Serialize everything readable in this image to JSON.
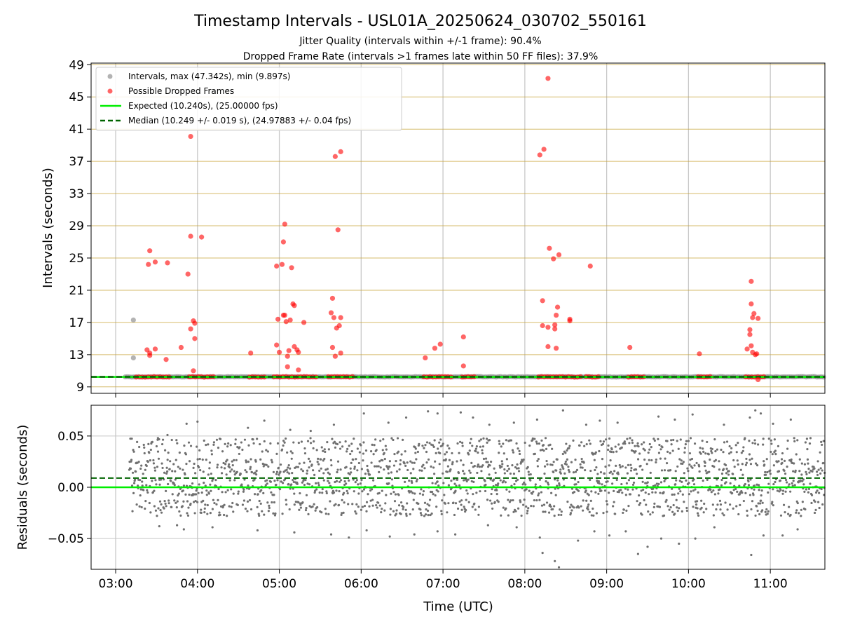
{
  "chart_data": [
    {
      "type": "scatter",
      "title": "Timestamp Intervals - USL01A_20250624_030702_550161",
      "subtitle_lines": [
        "Jitter Quality (intervals within +/-1 frame): 90.4%",
        "Dropped Frame Rate (intervals >1 frames late within 50 FF files): 37.9%"
      ],
      "xlabel": "",
      "ylabel": "Intervals (seconds)",
      "xlim": [
        "02:42",
        "11:40"
      ],
      "ylim": [
        8.2,
        49.2
      ],
      "yticks": [
        9,
        13,
        17,
        21,
        25,
        29,
        33,
        37,
        41,
        45,
        49
      ],
      "ytick_labels": [
        "9",
        "13",
        "17",
        "21",
        "25",
        "29",
        "33",
        "37",
        "41",
        "45",
        "49"
      ],
      "grid": "vertical at hours, horizontal goldenrod at y ticks",
      "legend_position": "top-left",
      "legend": [
        {
          "label": "Intervals, max (47.342s), min (9.897s)",
          "kind": "marker",
          "color": "#808080"
        },
        {
          "label": "Possible Dropped Frames",
          "kind": "marker",
          "color": "#ff0000"
        },
        {
          "label": "Expected (10.240s), (25.00000 fps)",
          "kind": "line",
          "color": "#00ee00"
        },
        {
          "label": "Median (10.249 +/- 0.019 s), (24.97883 +/- 0.04 fps)",
          "kind": "dashed",
          "color": "#006400"
        }
      ],
      "expected": 10.24,
      "median": 10.249,
      "baseline_bands": [
        {
          "series": "Intervals",
          "from": "03:07",
          "to": "11:40",
          "y": 10.25
        },
        {
          "series": "Possible Dropped Frames",
          "from": "03:15",
          "to": "03:40",
          "y": 10.24
        },
        {
          "series": "Possible Dropped Frames",
          "from": "03:54",
          "to": "04:12",
          "y": 10.24
        },
        {
          "series": "Possible Dropped Frames",
          "from": "04:38",
          "to": "04:49",
          "y": 10.24
        },
        {
          "series": "Possible Dropped Frames",
          "from": "04:56",
          "to": "05:28",
          "y": 10.24
        },
        {
          "series": "Possible Dropped Frames",
          "from": "05:36",
          "to": "05:55",
          "y": 10.24
        },
        {
          "series": "Possible Dropped Frames",
          "from": "06:46",
          "to": "07:07",
          "y": 10.24
        },
        {
          "series": "Possible Dropped Frames",
          "from": "07:14",
          "to": "07:24",
          "y": 10.24
        },
        {
          "series": "Possible Dropped Frames",
          "from": "08:10",
          "to": "08:42",
          "y": 10.24
        },
        {
          "series": "Possible Dropped Frames",
          "from": "08:45",
          "to": "08:55",
          "y": 10.24
        },
        {
          "series": "Possible Dropped Frames",
          "from": "09:16",
          "to": "09:28",
          "y": 10.24
        },
        {
          "series": "Possible Dropped Frames",
          "from": "10:07",
          "to": "10:18",
          "y": 10.24
        },
        {
          "series": "Possible Dropped Frames",
          "from": "10:42",
          "to": "10:56",
          "y": 10.24
        }
      ],
      "series": [
        {
          "name": "Intervals, max (47.342s), min (9.897s)",
          "color": "#808080",
          "points": [
            [
              "03:13",
              17.3
            ],
            [
              "03:13",
              12.6
            ]
          ]
        },
        {
          "name": "Possible Dropped Frames",
          "color": "#ff0000",
          "points": [
            [
              "03:24",
              24.2
            ],
            [
              "03:25",
              25.9
            ],
            [
              "03:29",
              24.5
            ],
            [
              "03:23",
              13.6
            ],
            [
              "03:25",
              12.9
            ],
            [
              "03:25",
              13.2
            ],
            [
              "03:29",
              13.7
            ],
            [
              "03:38",
              24.4
            ],
            [
              "03:37",
              12.4
            ],
            [
              "03:53",
              23.0
            ],
            [
              "03:55",
              27.7
            ],
            [
              "03:55",
              40.1
            ],
            [
              "03:55",
              16.2
            ],
            [
              "03:57",
              17.2
            ],
            [
              "03:58",
              16.9
            ],
            [
              "03:58",
              15.0
            ],
            [
              "04:03",
              27.6
            ],
            [
              "03:57",
              11.0
            ],
            [
              "03:48",
              13.9
            ],
            [
              "04:39",
              13.2
            ],
            [
              "04:58",
              24.0
            ],
            [
              "05:02",
              24.2
            ],
            [
              "05:03",
              27.0
            ],
            [
              "05:04",
              29.2
            ],
            [
              "05:09",
              23.8
            ],
            [
              "04:59",
              17.4
            ],
            [
              "05:04",
              17.9
            ],
            [
              "05:05",
              17.1
            ],
            [
              "05:08",
              17.3
            ],
            [
              "05:10",
              19.3
            ],
            [
              "05:11",
              19.1
            ],
            [
              "04:58",
              14.2
            ],
            [
              "05:00",
              13.3
            ],
            [
              "05:06",
              12.8
            ],
            [
              "05:07",
              13.5
            ],
            [
              "05:06",
              11.5
            ],
            [
              "05:11",
              14.0
            ],
            [
              "05:13",
              13.6
            ],
            [
              "05:14",
              13.3
            ],
            [
              "05:14",
              11.1
            ],
            [
              "05:18",
              17.0
            ],
            [
              "05:03",
              17.9
            ],
            [
              "05:41",
              37.6
            ],
            [
              "05:45",
              38.2
            ],
            [
              "05:43",
              28.5
            ],
            [
              "05:38",
              18.2
            ],
            [
              "05:39",
              20.0
            ],
            [
              "05:40",
              17.6
            ],
            [
              "05:42",
              16.3
            ],
            [
              "05:44",
              16.6
            ],
            [
              "05:45",
              17.6
            ],
            [
              "05:39",
              13.9
            ],
            [
              "05:41",
              12.8
            ],
            [
              "05:45",
              13.2
            ],
            [
              "06:47",
              12.6
            ],
            [
              "06:54",
              13.8
            ],
            [
              "06:58",
              14.3
            ],
            [
              "07:15",
              15.2
            ],
            [
              "07:15",
              11.6
            ],
            [
              "08:11",
              37.8
            ],
            [
              "08:14",
              38.5
            ],
            [
              "08:17",
              47.3
            ],
            [
              "08:18",
              26.2
            ],
            [
              "08:21",
              24.9
            ],
            [
              "08:25",
              25.4
            ],
            [
              "08:13",
              19.7
            ],
            [
              "08:13",
              16.6
            ],
            [
              "08:17",
              16.4
            ],
            [
              "08:22",
              16.2
            ],
            [
              "08:22",
              16.7
            ],
            [
              "08:23",
              17.9
            ],
            [
              "08:24",
              18.9
            ],
            [
              "08:33",
              17.2
            ],
            [
              "08:33",
              17.4
            ],
            [
              "08:17",
              14.0
            ],
            [
              "08:23",
              13.8
            ],
            [
              "08:48",
              24.0
            ],
            [
              "09:17",
              13.9
            ],
            [
              "10:08",
              13.1
            ],
            [
              "10:43",
              13.7
            ],
            [
              "10:45",
              15.5
            ],
            [
              "10:45",
              16.1
            ],
            [
              "10:46",
              19.3
            ],
            [
              "10:46",
              22.1
            ],
            [
              "10:47",
              17.6
            ],
            [
              "10:48",
              18.1
            ],
            [
              "10:51",
              17.5
            ],
            [
              "10:46",
              14.1
            ],
            [
              "10:47",
              13.3
            ],
            [
              "10:49",
              13.0
            ],
            [
              "10:50",
              13.1
            ],
            [
              "10:51",
              9.9
            ]
          ]
        }
      ]
    },
    {
      "type": "scatter",
      "title": "",
      "xlabel": "Time (UTC)",
      "ylabel": "Residuals (seconds)",
      "xlim": [
        "02:42",
        "11:40"
      ],
      "ylim": [
        -0.08,
        0.08
      ],
      "yticks": [
        -0.05,
        0.0,
        0.05
      ],
      "ytick_labels": [
        "−0.05",
        "0.00",
        "0.05"
      ],
      "xticks": [
        "03:00",
        "04:00",
        "05:00",
        "06:00",
        "07:00",
        "08:00",
        "09:00",
        "10:00",
        "11:00"
      ],
      "grid": "on",
      "expected_line": 0.0,
      "median_line": 0.009,
      "residual_levels": [
        -0.02,
        0.0,
        0.02,
        0.04
      ],
      "residual_span": [
        "03:10",
        "11:40"
      ],
      "series": [
        {
          "name": "Residuals",
          "color": "#808080",
          "points": [
            [
              "03:31",
              0.048
            ],
            [
              "03:38",
              0.051
            ],
            [
              "03:52",
              0.062
            ],
            [
              "04:00",
              0.064
            ],
            [
              "04:37",
              0.058
            ],
            [
              "04:49",
              0.065
            ],
            [
              "05:08",
              0.056
            ],
            [
              "05:23",
              0.055
            ],
            [
              "05:40",
              0.061
            ],
            [
              "06:02",
              0.072
            ],
            [
              "06:20",
              0.063
            ],
            [
              "06:33",
              0.068
            ],
            [
              "06:49",
              0.074
            ],
            [
              "06:56",
              0.072
            ],
            [
              "07:13",
              0.073
            ],
            [
              "07:22",
              0.068
            ],
            [
              "07:34",
              0.061
            ],
            [
              "07:52",
              0.063
            ],
            [
              "08:09",
              0.066
            ],
            [
              "08:28",
              0.075
            ],
            [
              "08:45",
              0.061
            ],
            [
              "08:55",
              0.065
            ],
            [
              "09:08",
              0.063
            ],
            [
              "09:38",
              0.069
            ],
            [
              "09:50",
              0.066
            ],
            [
              "10:03",
              0.071
            ],
            [
              "10:26",
              0.061
            ],
            [
              "10:45",
              0.068
            ],
            [
              "10:49",
              0.075
            ],
            [
              "10:53",
              0.072
            ],
            [
              "11:02",
              0.062
            ],
            [
              "11:15",
              0.066
            ],
            [
              "03:32",
              -0.038
            ],
            [
              "03:45",
              -0.037
            ],
            [
              "03:50",
              -0.041
            ],
            [
              "04:11",
              -0.039
            ],
            [
              "04:44",
              -0.042
            ],
            [
              "05:11",
              -0.044
            ],
            [
              "05:38",
              -0.046
            ],
            [
              "05:51",
              -0.049
            ],
            [
              "06:04",
              -0.042
            ],
            [
              "06:21",
              -0.048
            ],
            [
              "06:39",
              -0.046
            ],
            [
              "06:56",
              -0.043
            ],
            [
              "07:09",
              -0.046
            ],
            [
              "07:33",
              -0.037
            ],
            [
              "07:54",
              -0.039
            ],
            [
              "08:11",
              -0.049
            ],
            [
              "08:13",
              -0.064
            ],
            [
              "08:22",
              -0.072
            ],
            [
              "08:25",
              -0.078
            ],
            [
              "08:39",
              -0.052
            ],
            [
              "08:51",
              -0.043
            ],
            [
              "09:02",
              -0.047
            ],
            [
              "09:14",
              -0.043
            ],
            [
              "09:23",
              -0.065
            ],
            [
              "09:30",
              -0.058
            ],
            [
              "09:40",
              -0.05
            ],
            [
              "09:53",
              -0.055
            ],
            [
              "10:05",
              -0.05
            ],
            [
              "10:19",
              -0.039
            ],
            [
              "10:46",
              -0.066
            ],
            [
              "10:55",
              -0.047
            ],
            [
              "11:09",
              -0.047
            ],
            [
              "11:20",
              -0.041
            ]
          ]
        }
      ]
    }
  ]
}
